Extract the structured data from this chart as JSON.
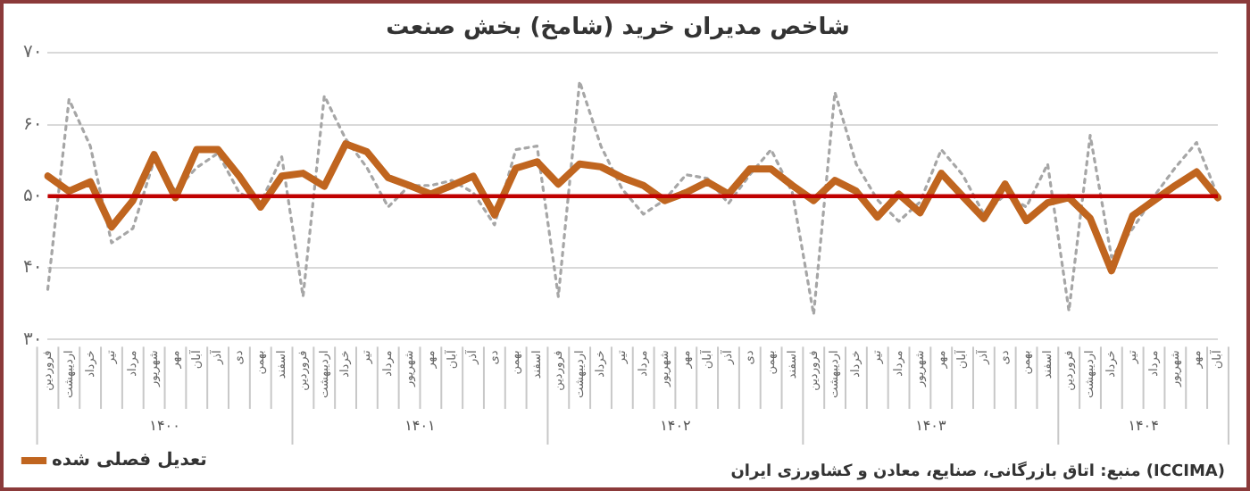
{
  "chart_data": {
    "type": "line",
    "title": "شاخص مدیران خرید (شامخ) بخش صنعت",
    "categories": [
      "فروردین",
      "اردیبهشت",
      "خرداد",
      "تیر",
      "مرداد",
      "شهریور",
      "مهر",
      "آبان",
      "آذر",
      "دی",
      "بهمن",
      "اسفند",
      "فروردین",
      "اردیبهشت",
      "خرداد",
      "تیر",
      "مرداد",
      "شهریور",
      "مهر",
      "آبان",
      "آذر",
      "دی",
      "بهمن",
      "اسفند",
      "فروردین",
      "اردیبهشت",
      "خرداد",
      "تیر",
      "مرداد",
      "شهریور",
      "مهر",
      "آبان",
      "آذر",
      "دی",
      "بهمن",
      "اسفند",
      "فروردین",
      "اردیبهشت",
      "خرداد",
      "تیر",
      "مرداد",
      "شهریور",
      "مهر",
      "آبان",
      "آذر",
      "دی",
      "بهمن",
      "اسفند",
      "فروردین",
      "اردیبهشت",
      "خرداد",
      "تیر",
      "مرداد",
      "شهریور",
      "مهر",
      "آبان"
    ],
    "series": [
      {
        "color": "#a6a6a6",
        "line_style": "dotted",
        "values": [
          37,
          63.5,
          57,
          43.5,
          45.5,
          55,
          50.8,
          54,
          56,
          50.5,
          49,
          55.5,
          36,
          64,
          58,
          54,
          48.5,
          51.5,
          51.5,
          52.2,
          50.5,
          46,
          56.5,
          57,
          36,
          66,
          57,
          51,
          47.5,
          49.5,
          53,
          52.5,
          49,
          53,
          56.5,
          50.5,
          33.5,
          64.5,
          54.5,
          49.5,
          46.5,
          49.2,
          56.5,
          53,
          47.5,
          50.2,
          48.5,
          54.5,
          34,
          58.5,
          41.5,
          45.5,
          50,
          54,
          57.5,
          50
        ]
      },
      {
        "name": "تعدیل فصلی شده",
        "color": "#c0651f",
        "line_style": "solid",
        "values": [
          52.8,
          50.7,
          52,
          45.7,
          49.4,
          55.8,
          49.8,
          56.5,
          56.5,
          52.8,
          48.5,
          52.8,
          53.2,
          51.4,
          57.3,
          56.2,
          52.6,
          51.5,
          50.3,
          51.5,
          52.8,
          47.4,
          53.9,
          54.8,
          51.7,
          54.5,
          54.1,
          52.6,
          51.5,
          49.4,
          50.5,
          52,
          50.3,
          53.8,
          53.8,
          51.5,
          49.4,
          52.2,
          50.7,
          47.1,
          50.3,
          47.7,
          53.2,
          50,
          46.9,
          51.7,
          46.6,
          49.1,
          49.8,
          46.9,
          39.6,
          47.3,
          49.4,
          51.5,
          53.4,
          49.8
        ]
      }
    ],
    "ylim": [
      30,
      70
    ],
    "yticks": [
      {
        "value": 30,
        "label": "۳۰"
      },
      {
        "value": 40,
        "label": "۴۰"
      },
      {
        "value": 50,
        "label": "۵۰"
      },
      {
        "value": 60,
        "label": "۶۰"
      },
      {
        "value": 70,
        "label": "۷۰"
      }
    ],
    "ref_lines": [
      {
        "axis": "y",
        "value": 50,
        "color": "#c00000"
      }
    ],
    "grid": "y",
    "legend": "bottom left",
    "marker": "none",
    "annotations": [
      "۱۴۰۰",
      "۱۴۰۱",
      "۱۴۰۲",
      "۱۴۰۳",
      "۱۴۰۴",
      "منبع: اتاق بازرگانی، صنایع، معادن و کشاورزی ایران (ICCIMA)"
    ]
  }
}
